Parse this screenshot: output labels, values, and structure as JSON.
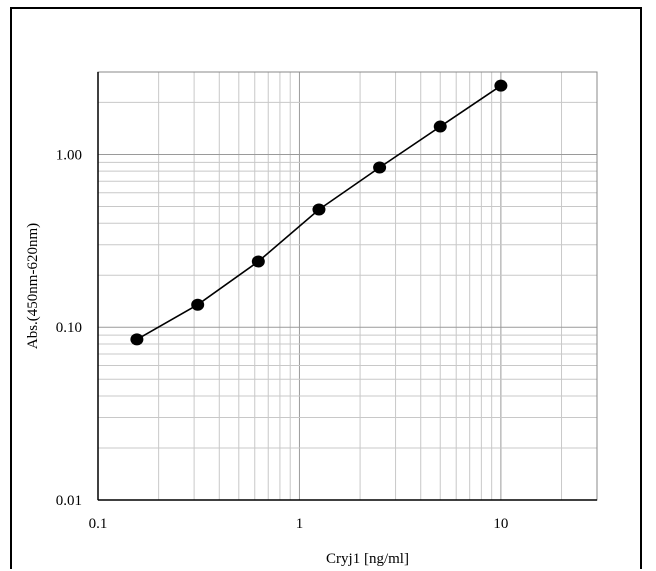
{
  "chart_data": {
    "type": "scatter",
    "title": "",
    "xlabel": "Cryj1 [ng/ml]",
    "ylabel": "Abs.(450nm-620nm)",
    "xscale": "log",
    "yscale": "log",
    "xlim": [
      0.1,
      30
    ],
    "ylim": [
      0.01,
      3
    ],
    "x_ticks": [
      0.1,
      1,
      10
    ],
    "x_tick_labels": [
      "0.1",
      "1",
      "10"
    ],
    "y_ticks": [
      0.01,
      0.1,
      1.0
    ],
    "y_tick_labels": [
      "0.01",
      "0.10",
      "1.00"
    ],
    "grid": true,
    "legend": "none",
    "fit_line": true,
    "x": [
      0.156,
      0.3125,
      0.625,
      1.25,
      2.5,
      5,
      10
    ],
    "y": [
      0.085,
      0.135,
      0.24,
      0.48,
      0.84,
      1.45,
      2.5
    ]
  }
}
